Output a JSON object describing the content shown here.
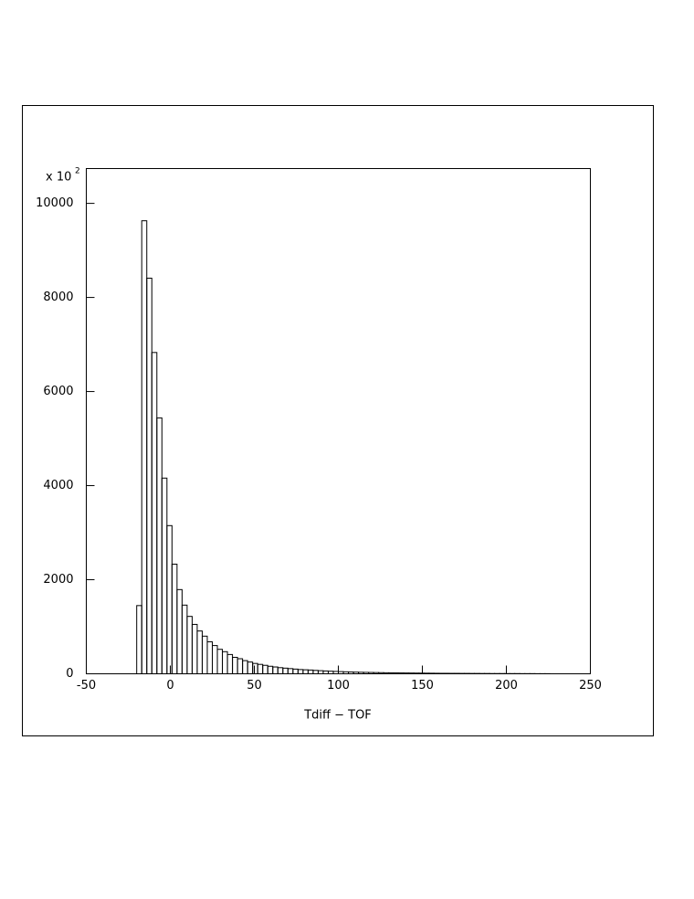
{
  "chart_data": {
    "type": "histogram",
    "xlabel": "Tdiff − TOF",
    "y_multiplier": "x 10",
    "y_multiplier_exponent": "2",
    "bins": [
      -20,
      -17,
      -14,
      -11,
      -8,
      -5,
      -2,
      1,
      4,
      7,
      10,
      13,
      16,
      19,
      22,
      25,
      28,
      31,
      34,
      37,
      40,
      43,
      46,
      49,
      52,
      55,
      58,
      61,
      64,
      67,
      70,
      73,
      76,
      79,
      82,
      85,
      88,
      91,
      94,
      97,
      100,
      103,
      106,
      109,
      112,
      115,
      118,
      121,
      124,
      127,
      130,
      133,
      136,
      139,
      142,
      145,
      148,
      151,
      154,
      157,
      160,
      163,
      166,
      169,
      172,
      175,
      178,
      181,
      184,
      187,
      190,
      193,
      196,
      199,
      202,
      205,
      208,
      211,
      214,
      217,
      220,
      223,
      226
    ],
    "values": [
      1450,
      9630,
      8410,
      6830,
      5440,
      4160,
      3150,
      2330,
      1790,
      1460,
      1220,
      1050,
      910,
      800,
      680,
      600,
      520,
      470,
      410,
      350,
      320,
      280,
      250,
      220,
      200,
      180,
      160,
      145,
      130,
      120,
      110,
      100,
      90,
      85,
      80,
      72,
      66,
      60,
      55,
      50,
      46,
      42,
      38,
      35,
      32,
      30,
      28,
      26,
      24,
      22,
      20,
      19,
      18,
      17,
      16,
      15,
      14,
      13,
      12,
      11,
      10,
      10,
      9,
      9,
      8,
      8,
      7,
      7,
      6,
      6,
      5,
      5,
      5,
      4,
      4,
      4,
      3,
      3,
      3,
      2,
      2,
      2
    ],
    "color": "#000000",
    "xlim": [
      -50,
      250
    ],
    "xticks": [
      -50,
      0,
      50,
      100,
      150,
      200,
      250
    ],
    "ylim": [
      0,
      10740
    ],
    "yticks": [
      0,
      2000,
      4000,
      6000,
      8000,
      10000
    ]
  }
}
